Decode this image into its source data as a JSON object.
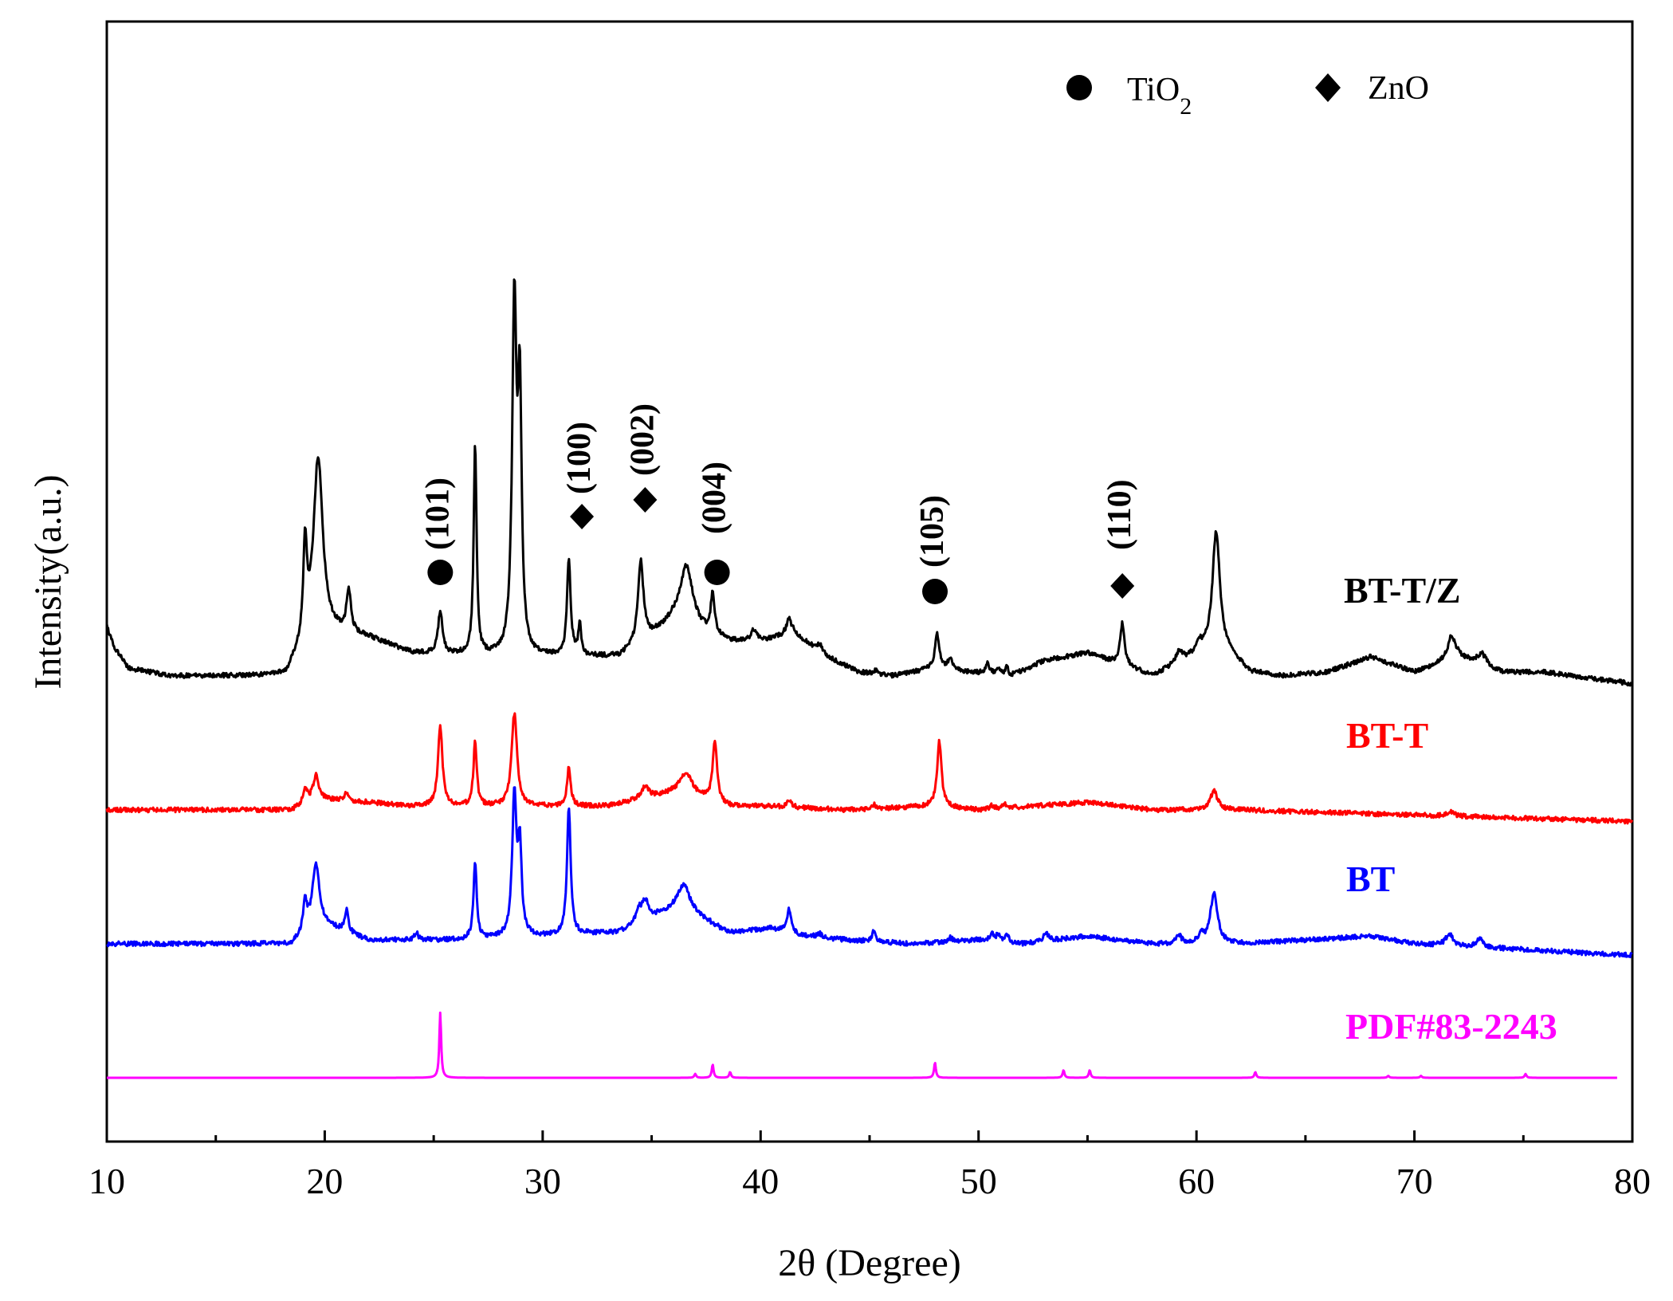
{
  "chart_data": {
    "type": "line",
    "xlabel": "2θ (Degree)",
    "ylabel": "Intensity(a.u.)",
    "xlim": [
      10,
      80
    ],
    "xticks": [
      "10",
      "20",
      "30",
      "40",
      "50",
      "60",
      "70",
      "80"
    ],
    "legend": [
      {
        "marker": "circle",
        "label": "TiO",
        "sub": "2"
      },
      {
        "marker": "diamond",
        "label": "ZnO",
        "sub": ""
      }
    ],
    "peak_annotations": [
      {
        "x": 25.3,
        "label": "(101)",
        "marker": "circle"
      },
      {
        "x": 31.8,
        "label": "(100)",
        "marker": "diamond"
      },
      {
        "x": 34.7,
        "label": "(002)",
        "marker": "diamond"
      },
      {
        "x": 38.0,
        "label": "(004)",
        "marker": "circle"
      },
      {
        "x": 48.0,
        "label": "(105)",
        "marker": "circle"
      },
      {
        "x": 56.6,
        "label": "(110)",
        "marker": "diamond"
      }
    ],
    "series": [
      {
        "name": "BT-T/Z",
        "color": "#000000",
        "offset": 10.5,
        "baseline": [
          [
            10,
            1.3
          ],
          [
            10.3,
            0.8
          ],
          [
            11,
            0.2
          ],
          [
            13,
            0.0
          ],
          [
            18.2,
            0.0
          ],
          [
            19.5,
            1.2
          ],
          [
            22,
            1.0
          ],
          [
            24,
            0.6
          ],
          [
            28,
            0.5
          ],
          [
            31,
            0.5
          ],
          [
            33.5,
            0.5
          ],
          [
            36,
            1.4
          ],
          [
            38.5,
            0.9
          ],
          [
            40,
            0.9
          ],
          [
            41.5,
            1.1
          ],
          [
            43,
            0.5
          ],
          [
            44.5,
            0.1
          ],
          [
            46,
            0.0
          ],
          [
            48,
            0.2
          ],
          [
            49.5,
            0.1
          ],
          [
            51.5,
            0.0
          ],
          [
            53,
            0.4
          ],
          [
            55,
            0.6
          ],
          [
            56.5,
            0.3
          ],
          [
            58,
            0.0
          ],
          [
            61,
            0.8
          ],
          [
            62.5,
            0.1
          ],
          [
            64,
            0.0
          ],
          [
            66,
            0.1
          ],
          [
            68,
            0.5
          ],
          [
            70,
            0.1
          ],
          [
            72,
            0.5
          ],
          [
            74,
            0.1
          ],
          [
            76,
            0.1
          ],
          [
            80,
            -0.2
          ]
        ],
        "peaks": [
          [
            19.1,
            2.4,
            0.1
          ],
          [
            19.7,
            4.5,
            0.25
          ],
          [
            21.1,
            1.1,
            0.12
          ],
          [
            25.3,
            1.1,
            0.12
          ],
          [
            26.9,
            5.5,
            0.08
          ],
          [
            28.7,
            9.0,
            0.12
          ],
          [
            28.95,
            6.5,
            0.1
          ],
          [
            31.2,
            2.5,
            0.1
          ],
          [
            31.7,
            0.8,
            0.08
          ],
          [
            34.5,
            2.1,
            0.15
          ],
          [
            36.6,
            1.6,
            0.35
          ],
          [
            37.8,
            1.1,
            0.1
          ],
          [
            39.7,
            0.3,
            0.15
          ],
          [
            41.3,
            0.4,
            0.15
          ],
          [
            42.7,
            0.2,
            0.2
          ],
          [
            45.3,
            0.1,
            0.1
          ],
          [
            48.1,
            0.9,
            0.12
          ],
          [
            48.7,
            0.3,
            0.12
          ],
          [
            50.4,
            0.3,
            0.1
          ],
          [
            50.9,
            0.2,
            0.1
          ],
          [
            51.3,
            0.2,
            0.1
          ],
          [
            56.6,
            1.1,
            0.12
          ],
          [
            59.2,
            0.3,
            0.2
          ],
          [
            60.1,
            0.3,
            0.15
          ],
          [
            60.9,
            3.0,
            0.2
          ],
          [
            71.7,
            0.6,
            0.2
          ],
          [
            73.1,
            0.3,
            0.25
          ]
        ]
      },
      {
        "name": "BT-T",
        "color": "#ff0000",
        "offset": 7.0,
        "baseline": [
          [
            10,
            0.0
          ],
          [
            18.5,
            0.0
          ],
          [
            19.5,
            0.3
          ],
          [
            22,
            0.2
          ],
          [
            24,
            0.1
          ],
          [
            27,
            0.1
          ],
          [
            30,
            0.1
          ],
          [
            33,
            0.1
          ],
          [
            36.3,
            0.5
          ],
          [
            38.5,
            0.1
          ],
          [
            40,
            0.1
          ],
          [
            44,
            0.0
          ],
          [
            48,
            0.1
          ],
          [
            50,
            0.0
          ],
          [
            55,
            0.2
          ],
          [
            58,
            0.0
          ],
          [
            62,
            0.0
          ],
          [
            80,
            -0.3
          ]
        ],
        "peaks": [
          [
            19.1,
            0.4,
            0.1
          ],
          [
            19.6,
            0.6,
            0.15
          ],
          [
            21.0,
            0.2,
            0.1
          ],
          [
            25.3,
            2.1,
            0.12
          ],
          [
            26.9,
            1.7,
            0.09
          ],
          [
            28.7,
            2.4,
            0.15
          ],
          [
            31.2,
            1.0,
            0.1
          ],
          [
            34.7,
            0.3,
            0.2
          ],
          [
            36.6,
            0.5,
            0.3
          ],
          [
            37.9,
            1.6,
            0.12
          ],
          [
            41.3,
            0.2,
            0.12
          ],
          [
            45.2,
            0.1,
            0.1
          ],
          [
            48.2,
            1.7,
            0.12
          ],
          [
            50.6,
            0.1,
            0.1
          ],
          [
            51.2,
            0.1,
            0.1
          ],
          [
            60.8,
            0.5,
            0.2
          ],
          [
            71.7,
            0.1,
            0.2
          ]
        ]
      },
      {
        "name": "BT",
        "color": "#0000ff",
        "offset": 3.5,
        "baseline": [
          [
            10,
            0.0
          ],
          [
            13,
            0.0
          ],
          [
            18.5,
            0.0
          ],
          [
            19.5,
            0.6
          ],
          [
            22,
            0.1
          ],
          [
            26,
            0.1
          ],
          [
            30,
            0.2
          ],
          [
            33.5,
            0.3
          ],
          [
            36.3,
            1.0
          ],
          [
            38.5,
            0.3
          ],
          [
            40.5,
            0.4
          ],
          [
            42,
            0.2
          ],
          [
            44,
            0.1
          ],
          [
            47,
            0.0
          ],
          [
            50,
            0.1
          ],
          [
            52,
            0.0
          ],
          [
            55,
            0.2
          ],
          [
            58,
            0.0
          ],
          [
            62,
            0.0
          ],
          [
            68,
            0.2
          ],
          [
            70,
            0.0
          ],
          [
            80,
            -0.3
          ]
        ],
        "peaks": [
          [
            19.1,
            0.7,
            0.1
          ],
          [
            19.6,
            1.5,
            0.18
          ],
          [
            21.0,
            0.6,
            0.1
          ],
          [
            24.2,
            0.2,
            0.1
          ],
          [
            26.9,
            2.0,
            0.09
          ],
          [
            28.7,
            3.6,
            0.12
          ],
          [
            28.95,
            2.2,
            0.1
          ],
          [
            31.2,
            3.3,
            0.1
          ],
          [
            34.4,
            0.3,
            0.15
          ],
          [
            34.7,
            0.5,
            0.2
          ],
          [
            36.5,
            0.6,
            0.3
          ],
          [
            41.3,
            0.6,
            0.12
          ],
          [
            42.7,
            0.1,
            0.15
          ],
          [
            45.2,
            0.3,
            0.1
          ],
          [
            48.7,
            0.1,
            0.12
          ],
          [
            50.6,
            0.2,
            0.1
          ],
          [
            50.9,
            0.2,
            0.1
          ],
          [
            51.3,
            0.2,
            0.1
          ],
          [
            53.1,
            0.2,
            0.15
          ],
          [
            59.2,
            0.2,
            0.15
          ],
          [
            60.2,
            0.2,
            0.15
          ],
          [
            60.8,
            1.3,
            0.2
          ],
          [
            71.6,
            0.3,
            0.2
          ],
          [
            73.0,
            0.2,
            0.2
          ]
        ]
      },
      {
        "name": "PDF#83-2243",
        "color": "#ff00ff",
        "offset": 0.0,
        "baseline": [
          [
            10,
            0.0
          ],
          [
            79.3,
            0.0
          ]
        ],
        "peaks": [
          [
            25.3,
            1.7,
            0.05
          ],
          [
            37.0,
            0.1,
            0.05
          ],
          [
            37.8,
            0.35,
            0.05
          ],
          [
            38.6,
            0.15,
            0.05
          ],
          [
            48.0,
            0.4,
            0.05
          ],
          [
            53.9,
            0.2,
            0.05
          ],
          [
            55.1,
            0.2,
            0.05
          ],
          [
            62.7,
            0.15,
            0.05
          ],
          [
            68.8,
            0.05,
            0.05
          ],
          [
            70.3,
            0.05,
            0.05
          ],
          [
            75.1,
            0.1,
            0.05
          ]
        ]
      }
    ]
  }
}
